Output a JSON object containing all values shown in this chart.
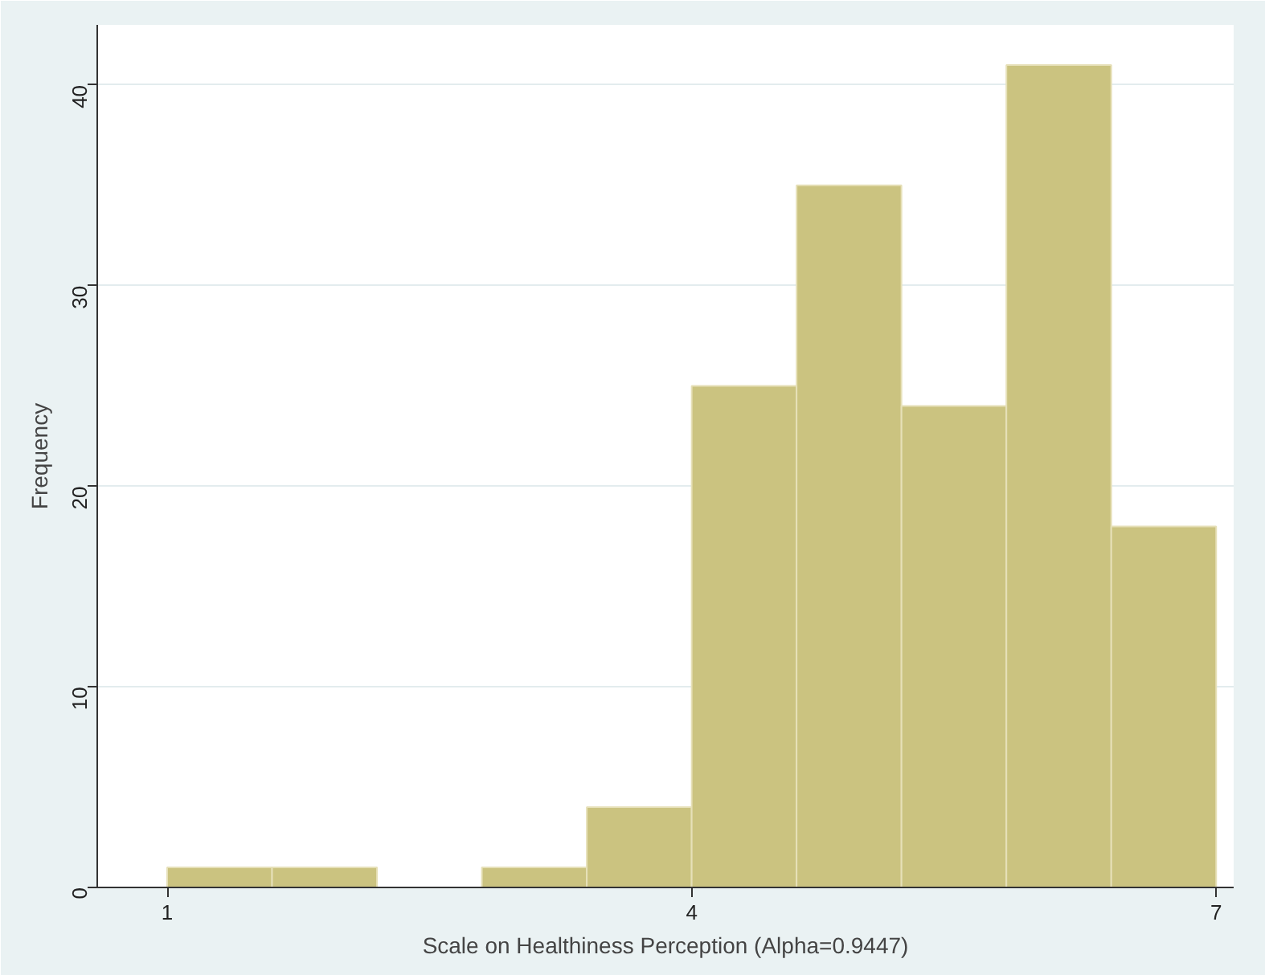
{
  "chart_data": {
    "type": "histogram",
    "xlabel": "Scale on Healthiness Perception (Alpha=0.9447)",
    "ylabel": "Frequency",
    "bins": [
      1,
      1.6,
      2.2,
      2.8,
      3.4,
      4.0,
      4.6,
      5.2,
      5.8,
      6.4,
      7.0
    ],
    "values": [
      1,
      1,
      0,
      1,
      4,
      25,
      35,
      24,
      41,
      18
    ],
    "color": "#cbc380",
    "xlim": [
      0.6,
      7.1
    ],
    "ylim": [
      0,
      43
    ],
    "xticks": [
      1,
      4,
      7
    ],
    "yticks": [
      0,
      10,
      20,
      30,
      40
    ],
    "grid": "y"
  }
}
